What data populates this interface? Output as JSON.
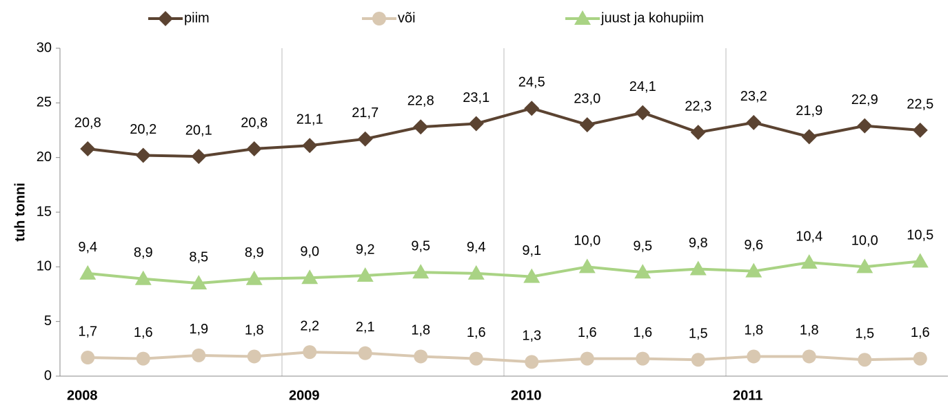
{
  "chart_data": {
    "type": "line",
    "y_label": "tuh tonni",
    "categories": [
      "2008",
      null,
      null,
      null,
      "2009",
      null,
      null,
      null,
      "2010",
      null,
      null,
      null,
      "2011",
      null,
      null,
      null
    ],
    "ylim": [
      0,
      30
    ],
    "yticks": [
      0,
      5,
      10,
      15,
      20,
      25,
      30
    ],
    "legend": "top",
    "series": [
      {
        "name": "piim",
        "color": "#5b4331",
        "marker": "diamond",
        "values": [
          20.8,
          20.2,
          20.1,
          20.8,
          21.1,
          21.7,
          22.8,
          23.1,
          24.5,
          23.0,
          24.1,
          22.3,
          23.2,
          21.9,
          22.9,
          22.5
        ],
        "value_labels": [
          "20,8",
          "20,2",
          "20,1",
          "20,8",
          "21,1",
          "21,7",
          "22,8",
          "23,1",
          "24,5",
          "23,0",
          "24,1",
          "22,3",
          "23,2",
          "21,9",
          "22,9",
          "22,5"
        ]
      },
      {
        "name": "või",
        "color": "#d9c8b1",
        "marker": "circle",
        "values": [
          1.7,
          1.6,
          1.9,
          1.8,
          2.2,
          2.1,
          1.8,
          1.6,
          1.3,
          1.6,
          1.6,
          1.5,
          1.8,
          1.8,
          1.5,
          1.6
        ],
        "value_labels": [
          "1,7",
          "1,6",
          "1,9",
          "1,8",
          "2,2",
          "2,1",
          "1,8",
          "1,6",
          "1,3",
          "1,6",
          "1,6",
          "1,5",
          "1,8",
          "1,8",
          "1,5",
          "1,6"
        ]
      },
      {
        "name": "juust ja kohupiim",
        "color": "#a9d384",
        "marker": "triangle",
        "values": [
          9.4,
          8.9,
          8.5,
          8.9,
          9.0,
          9.2,
          9.5,
          9.4,
          9.1,
          10.0,
          9.5,
          9.8,
          9.6,
          10.4,
          10.0,
          10.5
        ],
        "value_labels": [
          "9,4",
          "8,9",
          "8,5",
          "8,9",
          "9,0",
          "9,2",
          "9,5",
          "9,4",
          "9,1",
          "10,0",
          "9,5",
          "9,8",
          "9,6",
          "10,4",
          "10,0",
          "10,5"
        ]
      }
    ]
  }
}
